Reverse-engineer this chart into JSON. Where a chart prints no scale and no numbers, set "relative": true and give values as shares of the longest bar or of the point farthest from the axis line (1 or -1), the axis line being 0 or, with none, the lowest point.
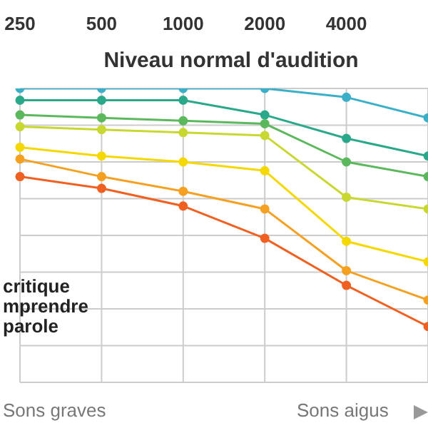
{
  "chart_data": {
    "type": "line",
    "relative": true,
    "categories": [
      "250",
      "500",
      "1000",
      "2000",
      "4000",
      null
    ],
    "series": [
      {
        "color": "#3ab0c8",
        "values": [
          1,
          1,
          1,
          1,
          0.97,
          0.9
        ]
      },
      {
        "color": "#2aa88a",
        "values": [
          0.96,
          0.96,
          0.96,
          0.91,
          0.83,
          0.77
        ]
      },
      {
        "color": "#5cb85c",
        "values": [
          0.91,
          0.9,
          0.89,
          0.88,
          0.75,
          0.7
        ]
      },
      {
        "color": "#c8d830",
        "values": [
          0.87,
          0.86,
          0.85,
          0.84,
          0.63,
          0.59
        ]
      },
      {
        "color": "#f5d800",
        "values": [
          0.8,
          0.77,
          0.75,
          0.72,
          0.48,
          0.41
        ]
      },
      {
        "color": "#f5a020",
        "values": [
          0.76,
          0.7,
          0.65,
          0.59,
          0.38,
          0.28
        ]
      },
      {
        "color": "#f06020",
        "values": [
          0.7,
          0.66,
          0.6,
          0.49,
          0.33,
          0.19
        ]
      }
    ],
    "annotations": [
      "Niveau normal d'audition",
      "critique\nmprendre\nparole",
      "Sons graves",
      "Sons aigus"
    ],
    "grid": true,
    "marker": "circle",
    "line_style": "solid"
  }
}
